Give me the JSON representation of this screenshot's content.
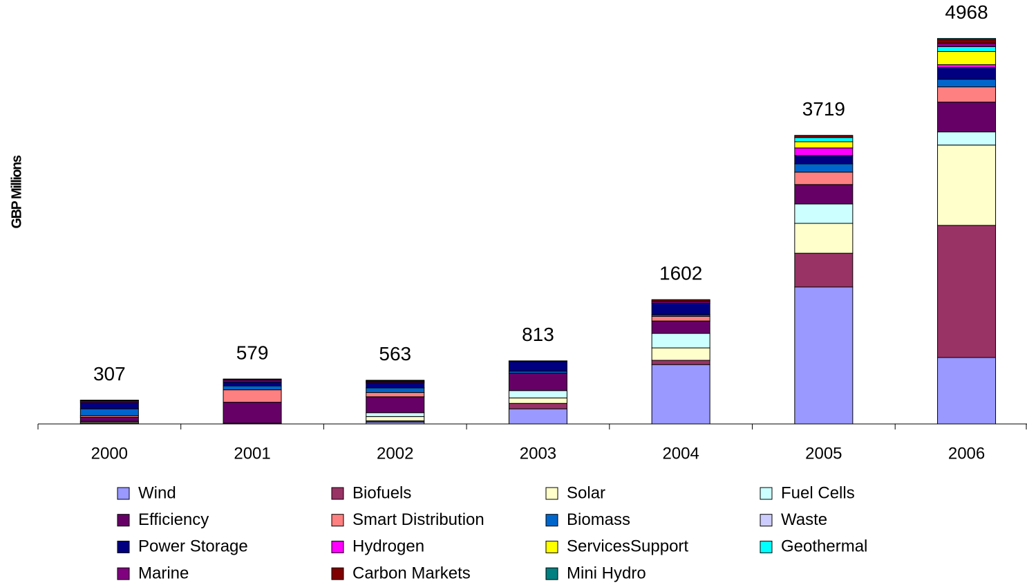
{
  "chart_data": {
    "type": "stacked_bar",
    "y_label": "GBP Millions",
    "categories": [
      "2000",
      "2001",
      "2002",
      "2003",
      "2004",
      "2005",
      "2006"
    ],
    "totals": [
      307,
      579,
      563,
      813,
      1602,
      3719,
      4968
    ],
    "ylim": [
      0,
      5000
    ],
    "series": [
      {
        "name": "Wind",
        "color": "#9999ff",
        "values": [
          5,
          0,
          25,
          195,
          765,
          1765,
          856
        ]
      },
      {
        "name": "Biofuels",
        "color": "#993366",
        "values": [
          5,
          0,
          15,
          70,
          55,
          435,
          1703
        ]
      },
      {
        "name": "Solar",
        "color": "#ffffcc",
        "values": [
          15,
          5,
          55,
          70,
          160,
          385,
          1035
        ]
      },
      {
        "name": "Fuel Cells",
        "color": "#ccffff",
        "values": [
          10,
          5,
          50,
          95,
          187,
          250,
          170
        ]
      },
      {
        "name": "Efficiency",
        "color": "#660066",
        "values": [
          50,
          270,
          205,
          225,
          160,
          250,
          384
        ]
      },
      {
        "name": "Smart Distribution",
        "color": "#ff8080",
        "values": [
          20,
          160,
          55,
          0,
          60,
          160,
          196
        ]
      },
      {
        "name": "Biomass",
        "color": "#0066cc",
        "values": [
          90,
          50,
          60,
          25,
          20,
          107,
          98
        ]
      },
      {
        "name": "Waste",
        "color": "#ccccff",
        "values": [
          0,
          0,
          0,
          0,
          0,
          0,
          0
        ]
      },
      {
        "name": "Power Storage",
        "color": "#000080",
        "values": [
          80,
          50,
          65,
          125,
          150,
          107,
          152
        ]
      },
      {
        "name": "Hydrogen",
        "color": "#ff00ff",
        "values": [
          0,
          0,
          0,
          0,
          0,
          98,
          36
        ]
      },
      {
        "name": "ServicesSupport",
        "color": "#ffff00",
        "values": [
          0,
          0,
          0,
          0,
          0,
          80,
          170
        ]
      },
      {
        "name": "Geothermal",
        "color": "#00ffff",
        "values": [
          0,
          0,
          0,
          0,
          0,
          54,
          62
        ]
      },
      {
        "name": "Marine",
        "color": "#800080",
        "values": [
          20,
          25,
          15,
          5,
          25,
          0,
          45
        ]
      },
      {
        "name": "Carbon Markets",
        "color": "#800000",
        "values": [
          5,
          10,
          10,
          3,
          20,
          28,
          45
        ]
      },
      {
        "name": "Mini Hydro",
        "color": "#008080",
        "values": [
          7,
          4,
          8,
          0,
          0,
          0,
          16
        ]
      }
    ]
  }
}
